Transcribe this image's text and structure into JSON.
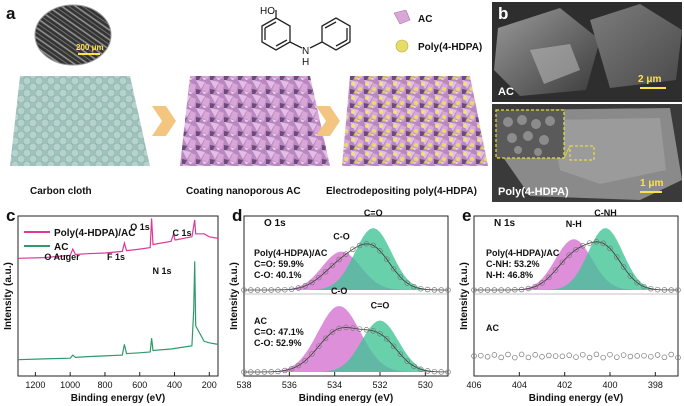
{
  "panel_a": {
    "label": "a",
    "scale_bar": "200 μm",
    "legend": {
      "ac": "AC",
      "poly": "Poly(4-HDPA)"
    },
    "molecule_labels": {
      "ho": "HO",
      "nh": "N",
      "h": "H"
    },
    "captions": [
      "Carbon cloth",
      "Coating nanoporous AC",
      "Electrodepositing poly(4-HDPA)"
    ],
    "colors": {
      "cloth": "#8fb4ae",
      "ac": "#d9a6d8",
      "poly": "#e6dc6a",
      "arrow": "#f3c57f"
    }
  },
  "panel_b": {
    "label": "b",
    "top_label": "AC",
    "top_scale": "2 μm",
    "bottom_label": "Poly(4-HDPA)",
    "bottom_scale": "1 μm"
  },
  "chart_data": [
    {
      "type": "line",
      "panel": "c",
      "xlabel": "Binding energy (eV)",
      "ylabel": "Intensity (a.u.)",
      "xlim": [
        1300,
        150
      ],
      "xticks": [
        1200,
        1000,
        800,
        600,
        400,
        200
      ],
      "series": [
        {
          "name": "Poly(4-HDPA)/AC",
          "color": "#e0389a",
          "x": [
            1300,
            1150,
            1000,
            985,
            970,
            900,
            800,
            700,
            688,
            676,
            600,
            540,
            532,
            524,
            420,
            405,
            398,
            392,
            300,
            290,
            284,
            278,
            230,
            200,
            150
          ],
          "y": [
            0.74,
            0.745,
            0.76,
            0.8,
            0.765,
            0.77,
            0.775,
            0.785,
            0.84,
            0.79,
            0.8,
            0.81,
            1.0,
            0.83,
            0.85,
            0.9,
            0.86,
            0.86,
            0.88,
            0.95,
            0.99,
            0.9,
            0.9,
            0.88,
            0.87
          ]
        },
        {
          "name": "AC",
          "color": "#2e9a6a",
          "x": [
            1300,
            1150,
            1000,
            985,
            970,
            900,
            800,
            700,
            688,
            676,
            600,
            540,
            532,
            524,
            420,
            300,
            290,
            284,
            278,
            230,
            200,
            150
          ],
          "y": [
            0.08,
            0.085,
            0.09,
            0.11,
            0.095,
            0.1,
            0.105,
            0.11,
            0.18,
            0.12,
            0.125,
            0.13,
            0.22,
            0.14,
            0.15,
            0.17,
            0.4,
            0.72,
            0.3,
            0.2,
            0.19,
            0.18
          ]
        }
      ],
      "annotations": [
        "O 1s",
        "C 1s",
        "O Auger",
        "F 1s",
        "N 1s"
      ]
    },
    {
      "type": "line",
      "panel": "d",
      "title": "O 1s",
      "xlabel": "Binding energy (eV)",
      "ylabel": "Intensity (a.u.)",
      "xlim": [
        538,
        529
      ],
      "xticks": [
        538,
        536,
        534,
        532,
        530
      ],
      "upper": {
        "name": "Poly(4-HDPA)/AC",
        "texts": [
          "Poly(4-HDPA)/AC",
          "C=O: 59.9%",
          "C-O: 40.1%"
        ],
        "peaks": [
          {
            "label": "C-O",
            "center": 533.7,
            "height": 0.62,
            "width": 1.0,
            "color": "#d56fd0"
          },
          {
            "label": "C=O",
            "center": 532.3,
            "height": 1.0,
            "width": 0.95,
            "color": "#3ec495"
          }
        ]
      },
      "lower": {
        "name": "AC",
        "texts": [
          "AC",
          "C=O: 47.1%",
          "C-O: 52.9%"
        ],
        "peaks": [
          {
            "label": "C-O",
            "center": 533.8,
            "height": 1.0,
            "width": 1.1,
            "color": "#d56fd0"
          },
          {
            "label": "C=O",
            "center": 532.0,
            "height": 0.78,
            "width": 0.95,
            "color": "#3ec495"
          }
        ]
      }
    },
    {
      "type": "line",
      "panel": "e",
      "title": "N 1s",
      "xlabel": "Binding energy (eV)",
      "ylabel": "Intensity (a.u.)",
      "xlim": [
        406,
        397
      ],
      "xticks": [
        406,
        404,
        402,
        400,
        398
      ],
      "upper": {
        "name": "Poly(4-HDPA)/AC",
        "texts": [
          "Poly(4-HDPA)/AC",
          "C-NH: 53.2%",
          "N-H: 46.8%"
        ],
        "peaks": [
          {
            "label": "N-H",
            "center": 401.6,
            "height": 0.82,
            "width": 0.95,
            "color": "#d56fd0"
          },
          {
            "label": "C-NH",
            "center": 400.2,
            "height": 1.0,
            "width": 0.9,
            "color": "#3ec495"
          }
        ]
      },
      "lower": {
        "name": "AC",
        "texts": [
          "AC"
        ],
        "flat": true
      }
    }
  ]
}
